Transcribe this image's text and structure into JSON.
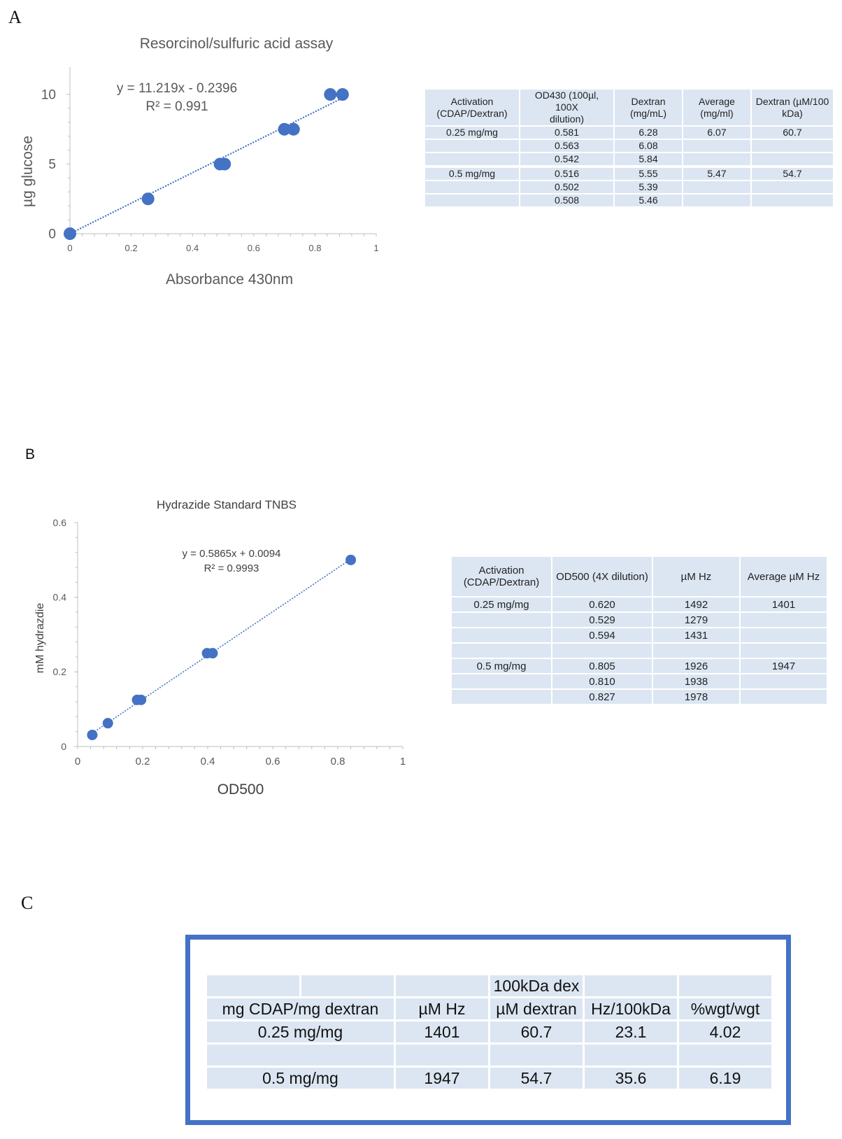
{
  "panels": {
    "a": "A",
    "b": "B",
    "c": "C"
  },
  "colors": {
    "marker": "#4472c4",
    "trendline": "#4472c4",
    "table_fill": "#dce6f2",
    "box_border": "#4472c4",
    "axis": "#bfbfbf"
  },
  "chart_data": [
    {
      "type": "scatter",
      "title": "Resorcinol/sulfuric acid assay",
      "xlabel": "Absorbance 430nm",
      "ylabel": "µg glucose",
      "xlim": [
        0,
        1
      ],
      "ylim": [
        0,
        12
      ],
      "x_ticks": [
        "0",
        "0.2",
        "0.4",
        "0.6",
        "0.8",
        "1"
      ],
      "x_tick_values": [
        0,
        0.2,
        0.4,
        0.6,
        0.8,
        1
      ],
      "y_ticks": [
        "0",
        "5",
        "10"
      ],
      "y_tick_values": [
        0,
        5,
        10
      ],
      "x": [
        0,
        0.255,
        0.49,
        0.505,
        0.7,
        0.73,
        0.85,
        0.89
      ],
      "y": [
        0,
        2.5,
        5,
        5,
        7.5,
        7.5,
        10,
        10
      ],
      "trendline": {
        "type": "linear",
        "slope": 11.219,
        "intercept": -0.2396
      },
      "equation": "y = 11.219x - 0.2396",
      "r_squared": "R² = 0.991"
    },
    {
      "type": "scatter",
      "title": "Hydrazide Standard TNBS",
      "xlabel": "OD500",
      "ylabel": "mM hydrazdie",
      "xlim": [
        0,
        1
      ],
      "ylim": [
        0,
        0.6
      ],
      "x_ticks": [
        "0",
        "0.2",
        "0.4",
        "0.6",
        "0.8",
        "1"
      ],
      "x_tick_values": [
        0,
        0.2,
        0.4,
        0.6,
        0.8,
        1
      ],
      "y_ticks": [
        "0",
        "0.2",
        "0.4",
        "0.6"
      ],
      "y_tick_values": [
        0,
        0.2,
        0.4,
        0.6
      ],
      "x": [
        0.045,
        0.093,
        0.183,
        0.195,
        0.398,
        0.415,
        0.84
      ],
      "y": [
        0.031,
        0.0625,
        0.125,
        0.125,
        0.25,
        0.25,
        0.5
      ],
      "trendline": {
        "type": "linear",
        "slope": 0.5865,
        "intercept": 0.0094
      },
      "equation": "y = 0.5865x + 0.0094",
      "r_squared": "R² = 0.9993"
    }
  ],
  "tableA": {
    "headers": [
      [
        "Activation",
        "(CDAP/Dextran)"
      ],
      [
        "OD430 (100µl, 100X",
        "dilution)"
      ],
      [
        "Dextran",
        "(mg/mL)"
      ],
      [
        "Average",
        "(mg/ml)"
      ],
      [
        "Dextran (µM/100",
        "kDa)"
      ]
    ],
    "rows": [
      [
        "0.25 mg/mg",
        "0.581",
        "6.28",
        "6.07",
        "60.7"
      ],
      [
        "",
        "0.563",
        "6.08",
        "",
        ""
      ],
      [
        "",
        "0.542",
        "5.84",
        "",
        ""
      ],
      [
        "",
        "",
        "",
        "",
        ""
      ],
      [
        "0.5 mg/mg",
        "0.516",
        "5.55",
        "5.47",
        "54.7"
      ],
      [
        "",
        "0.502",
        "5.39",
        "",
        ""
      ],
      [
        "",
        "0.508",
        "5.46",
        "",
        ""
      ]
    ]
  },
  "tableB": {
    "headers": [
      [
        "Activation",
        "(CDAP/Dextran)"
      ],
      [
        "OD500 (4X dilution)",
        ""
      ],
      [
        "µM Hz",
        ""
      ],
      [
        "Average µM Hz",
        ""
      ]
    ],
    "rows": [
      [
        "0.25 mg/mg",
        "0.620",
        "1492",
        "1401"
      ],
      [
        "",
        "0.529",
        "1279",
        ""
      ],
      [
        "",
        "0.594",
        "1431",
        ""
      ],
      [
        "",
        "",
        "",
        ""
      ],
      [
        "0.5 mg/mg",
        "0.805",
        "1926",
        "1947"
      ],
      [
        "",
        "0.810",
        "1938",
        ""
      ],
      [
        "",
        "0.827",
        "1978",
        ""
      ]
    ]
  },
  "tableC": {
    "header_top": [
      "",
      "",
      "",
      "100kDa dex",
      "",
      ""
    ],
    "header": [
      "mg CDAP/mg dextran",
      "",
      "µM Hz",
      "µM dextran",
      "Hz/100kDa",
      "%wgt/wgt"
    ],
    "rows": [
      [
        "0.25 mg/mg",
        "1401",
        "60.7",
        "23.1",
        "4.02"
      ],
      [
        "",
        "",
        "",
        "",
        ""
      ],
      [
        "0.5 mg/mg",
        "1947",
        "54.7",
        "35.6",
        "6.19"
      ]
    ]
  }
}
